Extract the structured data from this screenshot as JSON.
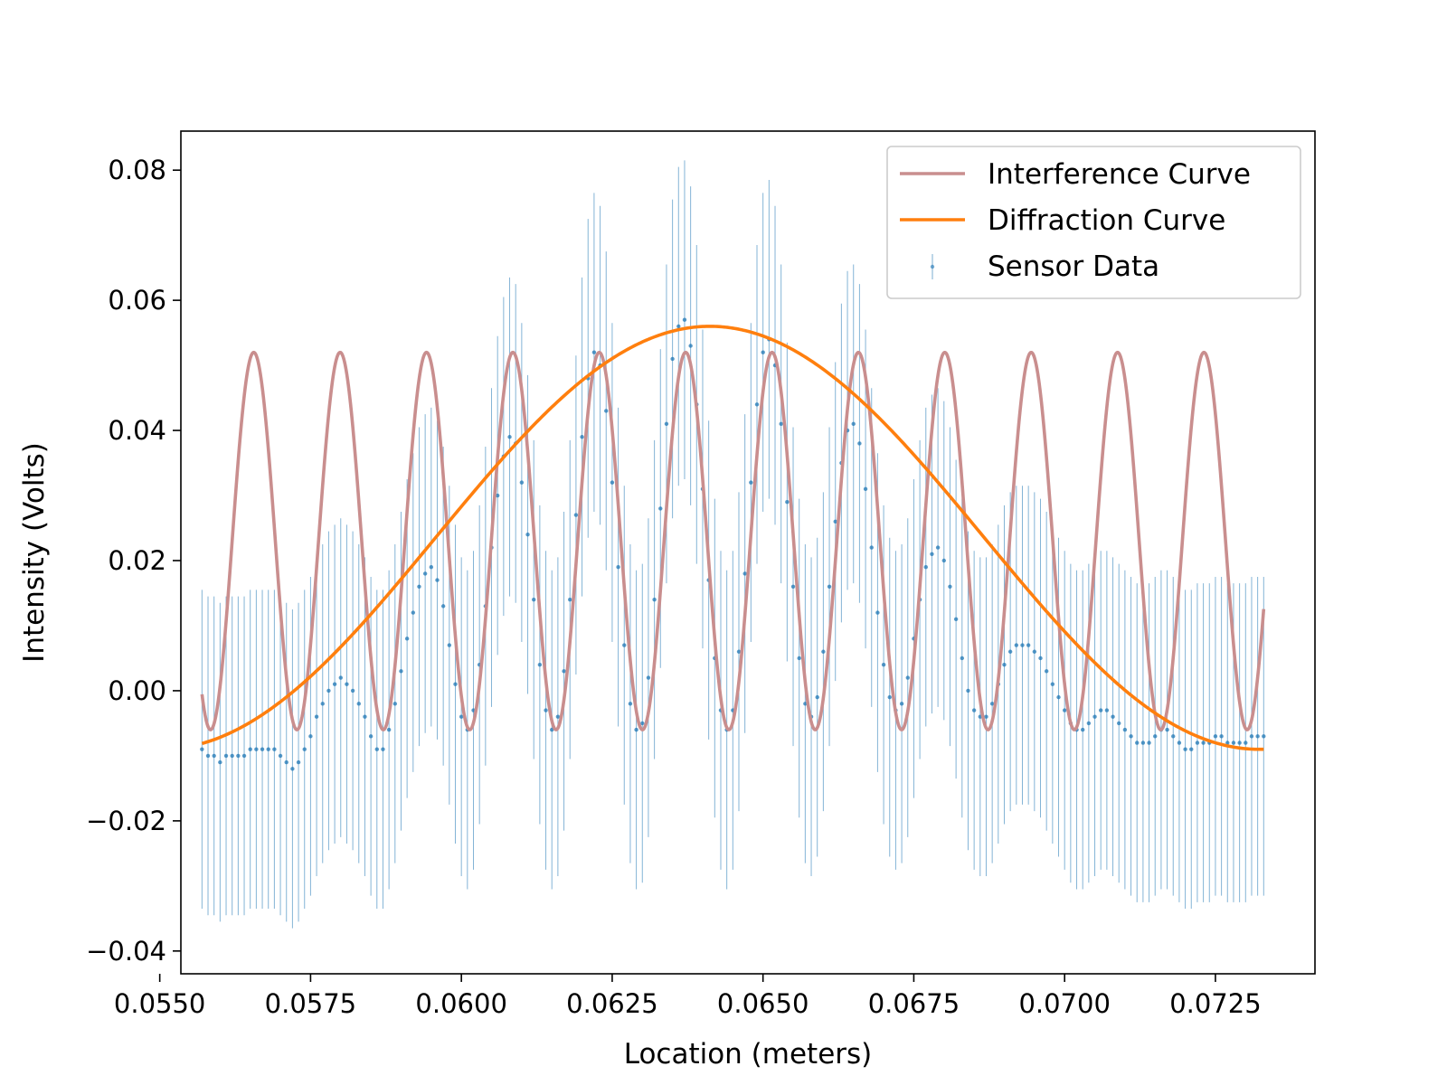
{
  "chart_data": {
    "type": "line",
    "title": "",
    "xlabel": "Location (meters)",
    "ylabel": "Intensity (Volts)",
    "xlim": [
      0.05535,
      0.07415
    ],
    "ylim": [
      -0.0435,
      0.086
    ],
    "x_ticks": [
      0.055,
      0.0575,
      0.06,
      0.0625,
      0.065,
      0.0675,
      0.07,
      0.0725
    ],
    "x_tick_labels": [
      "0.0550",
      "0.0575",
      "0.0600",
      "0.0625",
      "0.0650",
      "0.0675",
      "0.0700",
      "0.0725"
    ],
    "y_ticks": [
      -0.04,
      -0.02,
      0.0,
      0.02,
      0.04,
      0.06,
      0.08
    ],
    "y_tick_labels": [
      "−0.04",
      "−0.02",
      "0.00",
      "0.02",
      "0.04",
      "0.06",
      "0.08"
    ],
    "grid": false,
    "legend_position": "top-right",
    "series": [
      {
        "name": "Interference Curve",
        "kind": "line",
        "color": "#c98e8e",
        "x_range": [
          0.0557,
          0.0733
        ],
        "model": "cos2",
        "period": 0.001432,
        "peak_x": 0.06515,
        "peak_value": 0.052,
        "trough_value": -0.006
      },
      {
        "name": "Diffraction Curve",
        "kind": "line",
        "color": "#ff7f0e",
        "x_range": [
          0.0557,
          0.0733
        ],
        "model": "raised-cosine",
        "center_x": 0.06412,
        "half_width": 0.0091,
        "peak_value": 0.056,
        "base_value": -0.009
      },
      {
        "name": "Sensor Data",
        "kind": "errorbar",
        "color": "#1f77b4",
        "error": 0.0245,
        "x_range": [
          0.0557,
          0.0733
        ],
        "points": [
          [
            0.0557,
            -0.009
          ],
          [
            0.0558,
            -0.01
          ],
          [
            0.0559,
            -0.01
          ],
          [
            0.056,
            -0.011
          ],
          [
            0.0561,
            -0.01
          ],
          [
            0.0562,
            -0.01
          ],
          [
            0.0563,
            -0.01
          ],
          [
            0.0564,
            -0.01
          ],
          [
            0.0565,
            -0.009
          ],
          [
            0.0566,
            -0.009
          ],
          [
            0.0567,
            -0.009
          ],
          [
            0.0568,
            -0.009
          ],
          [
            0.0569,
            -0.009
          ],
          [
            0.057,
            -0.01
          ],
          [
            0.0571,
            -0.011
          ],
          [
            0.0572,
            -0.012
          ],
          [
            0.0573,
            -0.011
          ],
          [
            0.0574,
            -0.009
          ],
          [
            0.0575,
            -0.007
          ],
          [
            0.0576,
            -0.004
          ],
          [
            0.0577,
            -0.002
          ],
          [
            0.0578,
            0.0
          ],
          [
            0.0579,
            0.001
          ],
          [
            0.058,
            0.002
          ],
          [
            0.0581,
            0.001
          ],
          [
            0.0582,
            0.0
          ],
          [
            0.0583,
            -0.002
          ],
          [
            0.0584,
            -0.004
          ],
          [
            0.0585,
            -0.007
          ],
          [
            0.0586,
            -0.009
          ],
          [
            0.0587,
            -0.009
          ],
          [
            0.0588,
            -0.006
          ],
          [
            0.0589,
            -0.002
          ],
          [
            0.059,
            0.003
          ],
          [
            0.0591,
            0.008
          ],
          [
            0.0592,
            0.012
          ],
          [
            0.0593,
            0.016
          ],
          [
            0.0594,
            0.018
          ],
          [
            0.0595,
            0.019
          ],
          [
            0.0596,
            0.017
          ],
          [
            0.0597,
            0.013
          ],
          [
            0.0598,
            0.007
          ],
          [
            0.0599,
            0.001
          ],
          [
            0.06,
            -0.004
          ],
          [
            0.0601,
            -0.006
          ],
          [
            0.0602,
            -0.003
          ],
          [
            0.0603,
            0.004
          ],
          [
            0.0604,
            0.013
          ],
          [
            0.0605,
            0.022
          ],
          [
            0.0606,
            0.03
          ],
          [
            0.0607,
            0.036
          ],
          [
            0.0608,
            0.039
          ],
          [
            0.0609,
            0.038
          ],
          [
            0.061,
            0.032
          ],
          [
            0.0611,
            0.024
          ],
          [
            0.0612,
            0.014
          ],
          [
            0.0613,
            0.004
          ],
          [
            0.0614,
            -0.003
          ],
          [
            0.0615,
            -0.006
          ],
          [
            0.0616,
            -0.004
          ],
          [
            0.0617,
            0.003
          ],
          [
            0.0618,
            0.014
          ],
          [
            0.0619,
            0.027
          ],
          [
            0.062,
            0.039
          ],
          [
            0.0621,
            0.048
          ],
          [
            0.0622,
            0.052
          ],
          [
            0.0623,
            0.05
          ],
          [
            0.0624,
            0.043
          ],
          [
            0.0625,
            0.032
          ],
          [
            0.0626,
            0.019
          ],
          [
            0.0627,
            0.007
          ],
          [
            0.0628,
            -0.002
          ],
          [
            0.0629,
            -0.006
          ],
          [
            0.063,
            -0.005
          ],
          [
            0.0631,
            0.002
          ],
          [
            0.0632,
            0.014
          ],
          [
            0.0633,
            0.028
          ],
          [
            0.0634,
            0.041
          ],
          [
            0.0635,
            0.051
          ],
          [
            0.0636,
            0.056
          ],
          [
            0.0637,
            0.057
          ],
          [
            0.0638,
            0.053
          ],
          [
            0.0639,
            0.044
          ],
          [
            0.064,
            0.031
          ],
          [
            0.0641,
            0.017
          ],
          [
            0.0642,
            0.005
          ],
          [
            0.0643,
            -0.003
          ],
          [
            0.0644,
            -0.006
          ],
          [
            0.0645,
            -0.003
          ],
          [
            0.0646,
            0.006
          ],
          [
            0.0647,
            0.018
          ],
          [
            0.0648,
            0.032
          ],
          [
            0.0649,
            0.044
          ],
          [
            0.065,
            0.052
          ],
          [
            0.0651,
            0.054
          ],
          [
            0.0652,
            0.05
          ],
          [
            0.0653,
            0.041
          ],
          [
            0.0654,
            0.029
          ],
          [
            0.0655,
            0.016
          ],
          [
            0.0656,
            0.005
          ],
          [
            0.0657,
            -0.002
          ],
          [
            0.0658,
            -0.004
          ],
          [
            0.0659,
            -0.001
          ],
          [
            0.066,
            0.006
          ],
          [
            0.0661,
            0.016
          ],
          [
            0.0662,
            0.026
          ],
          [
            0.0663,
            0.035
          ],
          [
            0.0664,
            0.04
          ],
          [
            0.0665,
            0.041
          ],
          [
            0.0666,
            0.038
          ],
          [
            0.0667,
            0.031
          ],
          [
            0.0668,
            0.022
          ],
          [
            0.0669,
            0.012
          ],
          [
            0.067,
            0.004
          ],
          [
            0.0671,
            -0.001
          ],
          [
            0.0672,
            -0.003
          ],
          [
            0.0673,
            -0.002
          ],
          [
            0.0674,
            0.002
          ],
          [
            0.0675,
            0.008
          ],
          [
            0.0676,
            0.014
          ],
          [
            0.0677,
            0.019
          ],
          [
            0.0678,
            0.021
          ],
          [
            0.0679,
            0.022
          ],
          [
            0.068,
            0.02
          ],
          [
            0.0681,
            0.016
          ],
          [
            0.0682,
            0.011
          ],
          [
            0.0683,
            0.005
          ],
          [
            0.0684,
            0.0
          ],
          [
            0.0685,
            -0.003
          ],
          [
            0.0686,
            -0.004
          ],
          [
            0.0687,
            -0.004
          ],
          [
            0.0688,
            -0.002
          ],
          [
            0.0689,
            0.001
          ],
          [
            0.069,
            0.004
          ],
          [
            0.0691,
            0.006
          ],
          [
            0.0692,
            0.007
          ],
          [
            0.0693,
            0.007
          ],
          [
            0.0694,
            0.007
          ],
          [
            0.0695,
            0.006
          ],
          [
            0.0696,
            0.005
          ],
          [
            0.0697,
            0.003
          ],
          [
            0.0698,
            0.001
          ],
          [
            0.0699,
            -0.001
          ],
          [
            0.07,
            -0.003
          ],
          [
            0.0701,
            -0.005
          ],
          [
            0.0702,
            -0.006
          ],
          [
            0.0703,
            -0.006
          ],
          [
            0.0704,
            -0.005
          ],
          [
            0.0705,
            -0.004
          ],
          [
            0.0706,
            -0.003
          ],
          [
            0.0707,
            -0.003
          ],
          [
            0.0708,
            -0.004
          ],
          [
            0.0709,
            -0.005
          ],
          [
            0.071,
            -0.006
          ],
          [
            0.0711,
            -0.007
          ],
          [
            0.0712,
            -0.008
          ],
          [
            0.0713,
            -0.008
          ],
          [
            0.0714,
            -0.008
          ],
          [
            0.0715,
            -0.007
          ],
          [
            0.0716,
            -0.006
          ],
          [
            0.0717,
            -0.006
          ],
          [
            0.0718,
            -0.007
          ],
          [
            0.0719,
            -0.008
          ],
          [
            0.072,
            -0.009
          ],
          [
            0.0721,
            -0.009
          ],
          [
            0.0722,
            -0.008
          ],
          [
            0.0723,
            -0.008
          ],
          [
            0.0724,
            -0.008
          ],
          [
            0.0725,
            -0.007
          ],
          [
            0.0726,
            -0.007
          ],
          [
            0.0727,
            -0.008
          ],
          [
            0.0728,
            -0.008
          ],
          [
            0.0729,
            -0.008
          ],
          [
            0.073,
            -0.008
          ],
          [
            0.0731,
            -0.007
          ],
          [
            0.0732,
            -0.007
          ],
          [
            0.0733,
            -0.007
          ]
        ]
      }
    ]
  }
}
